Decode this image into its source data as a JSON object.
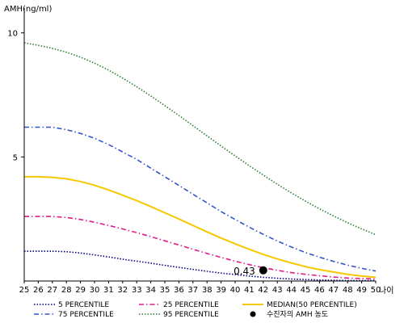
{
  "chart_data": {
    "type": "line",
    "ylabel": "AMH(ng/ml)",
    "xlabel": "나이",
    "xlim": [
      25,
      50
    ],
    "ylim": [
      0,
      11
    ],
    "y_ticks": [
      5,
      10
    ],
    "x_ticks": [
      25,
      26,
      27,
      28,
      29,
      30,
      31,
      32,
      33,
      34,
      35,
      36,
      37,
      38,
      39,
      40,
      41,
      42,
      43,
      44,
      45,
      46,
      47,
      48,
      49,
      50
    ],
    "grid": false,
    "legend_position": "bottom",
    "x": [
      25,
      26,
      27,
      28,
      29,
      30,
      31,
      32,
      33,
      34,
      35,
      36,
      37,
      38,
      39,
      40,
      41,
      42,
      43,
      44,
      45,
      46,
      47,
      48,
      49,
      50
    ],
    "series": [
      {
        "name": "5 PERCENTILE",
        "color": "#000080",
        "dash": "dotted",
        "values": [
          1.2,
          1.2,
          1.2,
          1.18,
          1.13,
          1.05,
          0.97,
          0.88,
          0.8,
          0.72,
          0.63,
          0.55,
          0.47,
          0.39,
          0.32,
          0.26,
          0.2,
          0.15,
          0.11,
          0.08,
          0.06,
          0.04,
          0.03,
          0.02,
          0.02,
          0.02
        ]
      },
      {
        "name": "25 PERCENTILE",
        "color": "#e0198c",
        "dash": "dash-dot",
        "values": [
          2.6,
          2.6,
          2.6,
          2.56,
          2.48,
          2.37,
          2.24,
          2.1,
          1.95,
          1.79,
          1.62,
          1.45,
          1.28,
          1.11,
          0.95,
          0.8,
          0.66,
          0.54,
          0.43,
          0.34,
          0.27,
          0.21,
          0.16,
          0.12,
          0.1,
          0.08
        ]
      },
      {
        "name": "MEDIAN(50 PERCENTILE)",
        "color": "#f5c800",
        "dash": "solid",
        "values": [
          4.2,
          4.2,
          4.18,
          4.12,
          4.01,
          3.86,
          3.67,
          3.46,
          3.24,
          3.0,
          2.75,
          2.5,
          2.24,
          1.98,
          1.73,
          1.5,
          1.28,
          1.07,
          0.89,
          0.73,
          0.58,
          0.46,
          0.36,
          0.27,
          0.2,
          0.15
        ]
      },
      {
        "name": "75 PERCENTILE",
        "color": "#3355cc",
        "dash": "dash-dot",
        "values": [
          6.2,
          6.2,
          6.2,
          6.1,
          5.95,
          5.75,
          5.5,
          5.2,
          4.9,
          4.55,
          4.2,
          3.85,
          3.5,
          3.15,
          2.8,
          2.48,
          2.17,
          1.88,
          1.61,
          1.37,
          1.15,
          0.96,
          0.79,
          0.64,
          0.51,
          0.4
        ]
      },
      {
        "name": "95 PERCENTILE",
        "color": "#2e7d32",
        "dash": "dotted",
        "values": [
          9.6,
          9.5,
          9.38,
          9.22,
          9.02,
          8.78,
          8.5,
          8.18,
          7.83,
          7.46,
          7.07,
          6.67,
          6.26,
          5.85,
          5.44,
          5.04,
          4.65,
          4.27,
          3.9,
          3.55,
          3.22,
          2.91,
          2.62,
          2.35,
          2.1,
          1.87
        ]
      }
    ],
    "marker": {
      "name": "수진자의 AMH 농도",
      "x": 42,
      "y": 0.43,
      "label": "0.43",
      "color": "#000000"
    }
  }
}
